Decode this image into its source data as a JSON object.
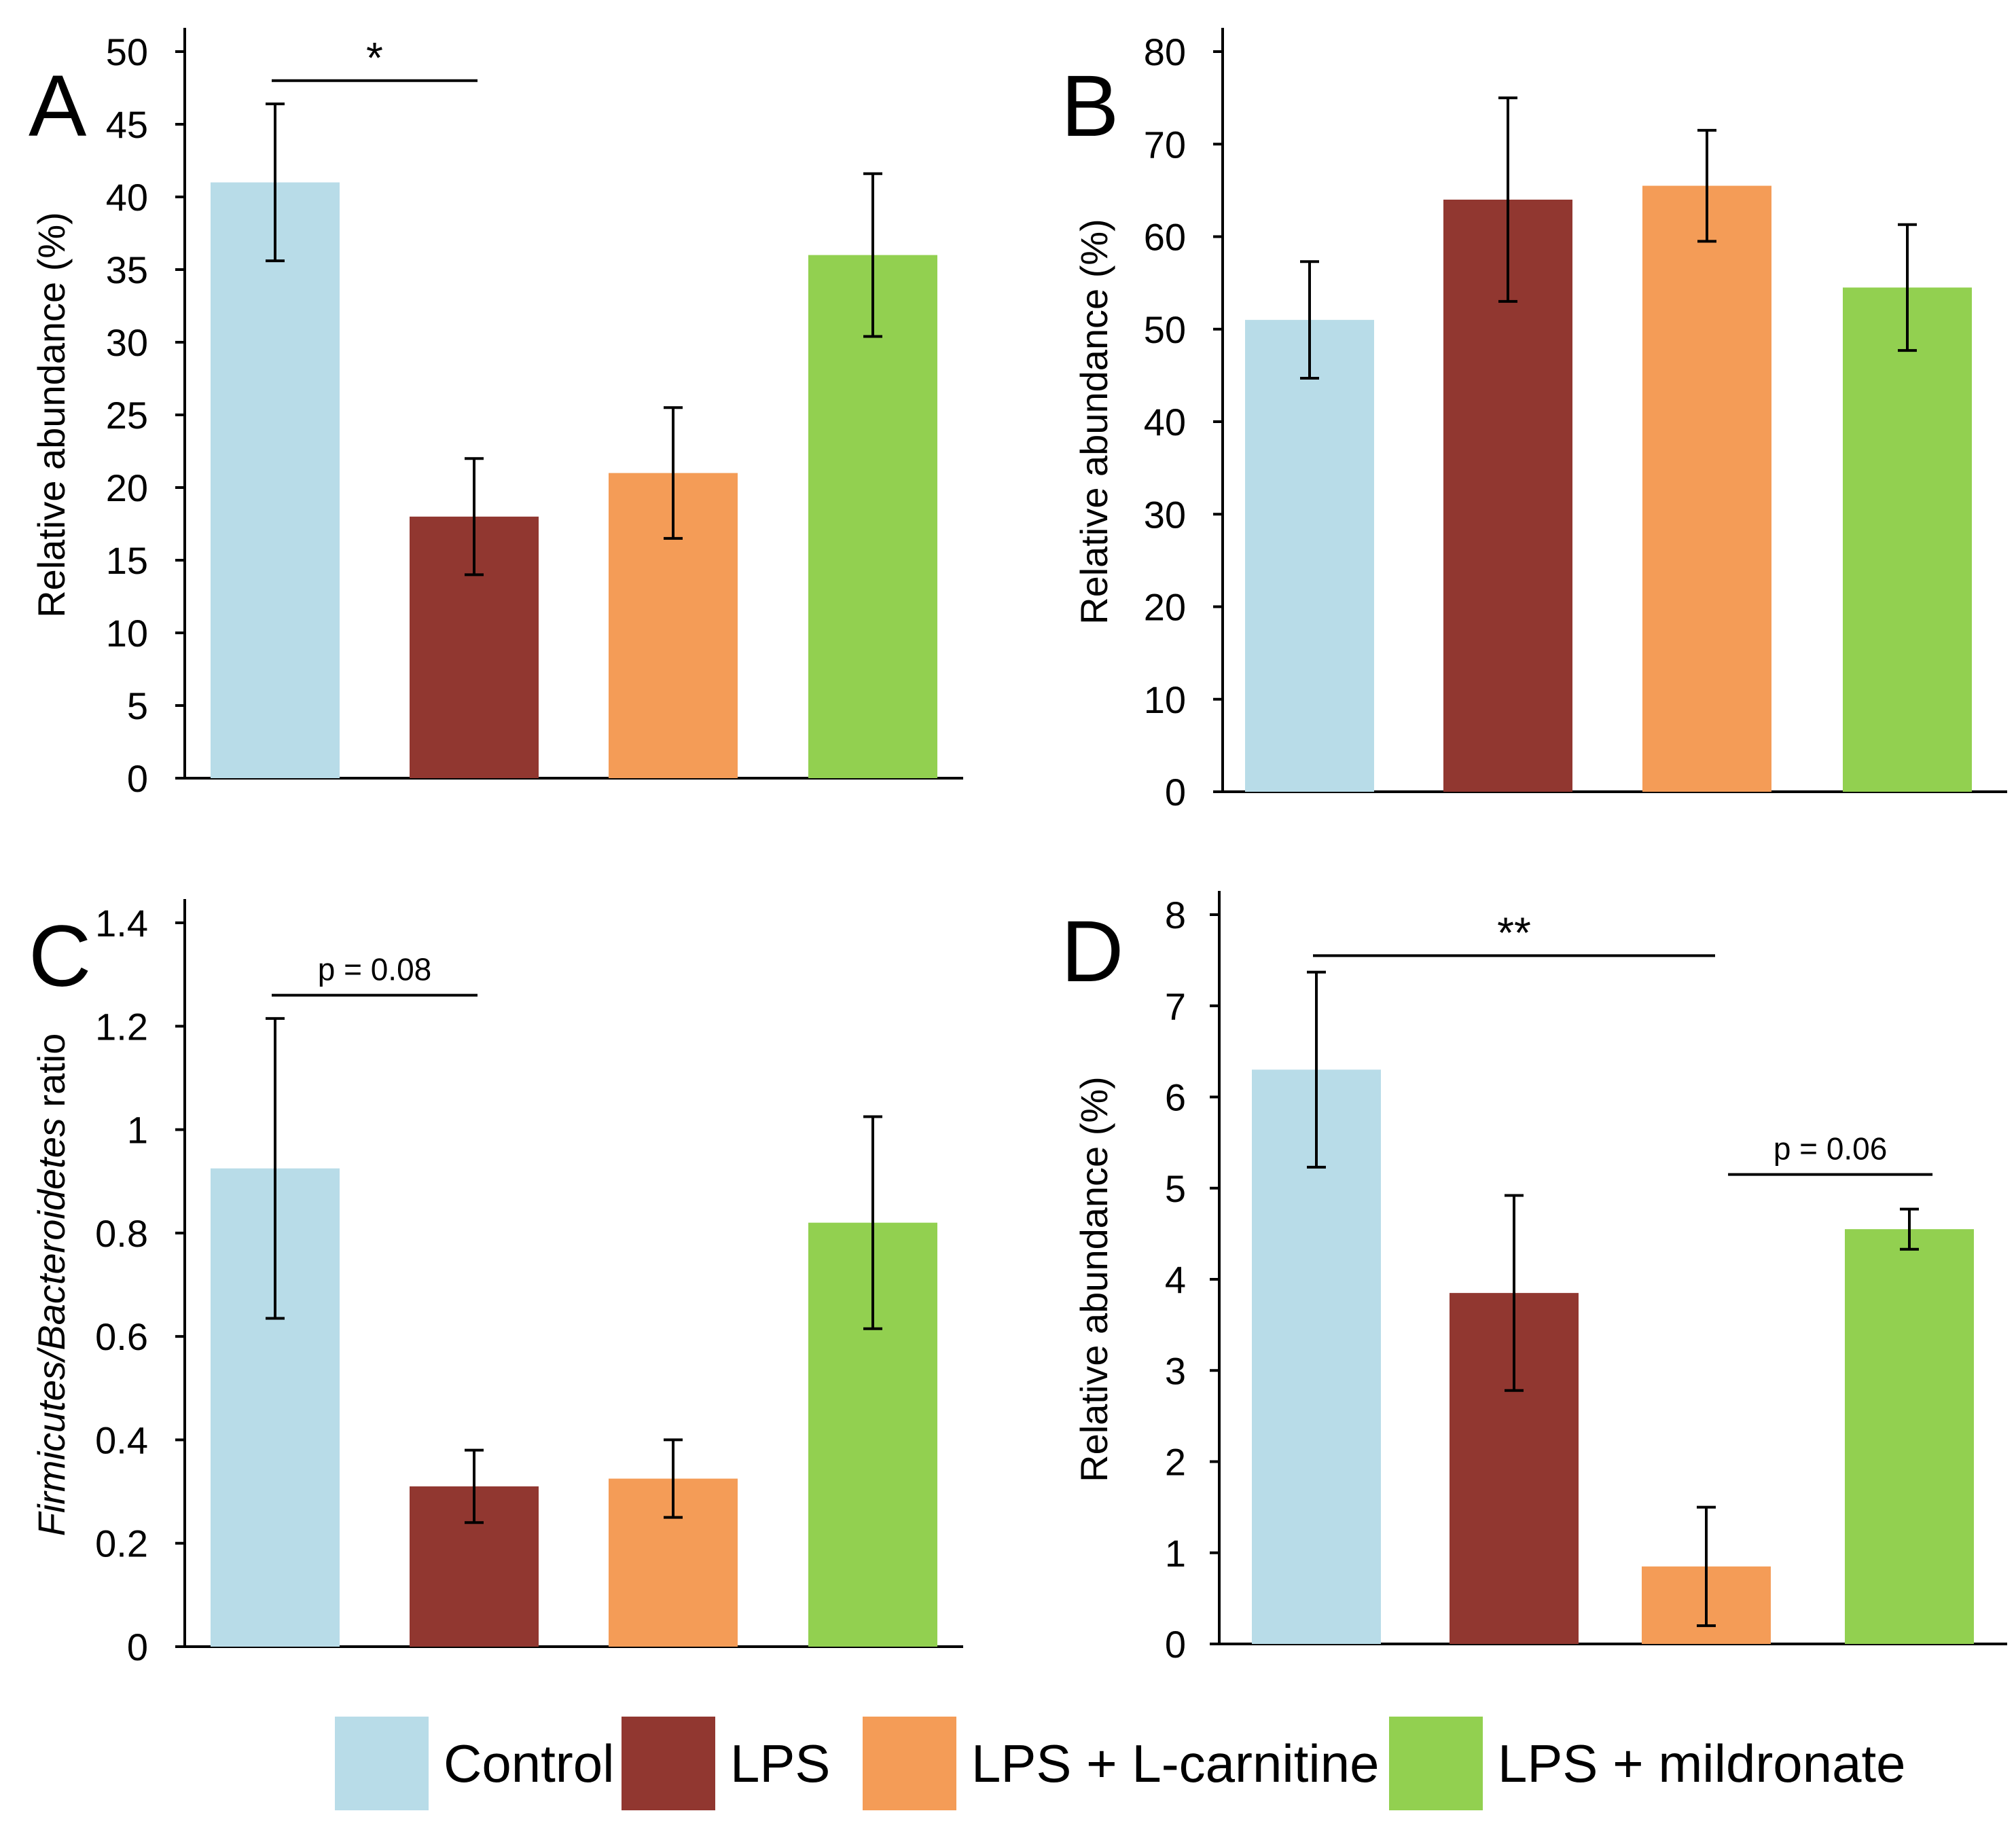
{
  "figure": {
    "legend": [
      {
        "label": "Control",
        "color": "#b8dce8"
      },
      {
        "label": "LPS",
        "color": "#913730"
      },
      {
        "label": "LPS + L-carnitine",
        "color": "#f49c57"
      },
      {
        "label": "LPS + mildronate",
        "color": "#92d050"
      }
    ]
  },
  "chart_data": [
    {
      "panel": "A",
      "type": "bar",
      "categories": [
        "Control",
        "LPS",
        "LPS + L-carnitine",
        "LPS + mildronate"
      ],
      "values": [
        41,
        18,
        21,
        36
      ],
      "errors": [
        5.4,
        4,
        4.5,
        5.6
      ],
      "ylabel": "Relative abundance (%)",
      "ylabel_italic_part": "",
      "ylim": [
        0,
        50
      ],
      "yticks": [
        0,
        5,
        10,
        15,
        20,
        25,
        30,
        35,
        40,
        45,
        50
      ],
      "ytick_labels": [
        "0",
        "5",
        "10",
        "15",
        "20",
        "25",
        "30",
        "35",
        "40",
        "45",
        "50"
      ],
      "annotations": [
        {
          "text": "*",
          "from": 0,
          "to": 1,
          "y": 48
        }
      ]
    },
    {
      "panel": "B",
      "type": "bar",
      "categories": [
        "Control",
        "LPS",
        "LPS + L-carnitine",
        "LPS + mildronate"
      ],
      "values": [
        51,
        64,
        65.5,
        54.5
      ],
      "errors": [
        6.3,
        11,
        6,
        6.8
      ],
      "ylabel": "Relative abundance (%)",
      "ylabel_italic_part": "",
      "ylim": [
        0,
        80
      ],
      "yticks": [
        0,
        10,
        20,
        30,
        40,
        50,
        60,
        70,
        80
      ],
      "ytick_labels": [
        "0",
        "10",
        "20",
        "30",
        "40",
        "50",
        "60",
        "70",
        "80"
      ],
      "annotations": []
    },
    {
      "panel": "C",
      "type": "bar",
      "categories": [
        "Control",
        "LPS",
        "LPS + L-carnitine",
        "LPS + mildronate"
      ],
      "values": [
        0.925,
        0.31,
        0.325,
        0.82
      ],
      "errors": [
        0.29,
        0.07,
        0.075,
        0.205
      ],
      "ylabel": "ratio",
      "ylabel_italic_part": "Firmicutes/Bacteroidetes",
      "ylim": [
        0,
        1.4
      ],
      "yticks": [
        0,
        0.2,
        0.4,
        0.6,
        0.8,
        1.0,
        1.2,
        1.4
      ],
      "ytick_labels": [
        "0",
        "0.2",
        "0.4",
        "0.6",
        "0.8",
        "1",
        "1.2",
        "1.4"
      ],
      "annotations": [
        {
          "text": "p = 0.08",
          "from": 0,
          "to": 1,
          "y": 1.26
        }
      ]
    },
    {
      "panel": "D",
      "type": "bar",
      "categories": [
        "Control",
        "LPS",
        "LPS + L-carnitine",
        "LPS + mildronate"
      ],
      "values": [
        6.3,
        3.85,
        0.85,
        4.55
      ],
      "errors": [
        1.07,
        1.07,
        0.65,
        0.22
      ],
      "ylabel": "Relative abundance (%)",
      "ylabel_italic_part": "",
      "ylim": [
        0,
        8
      ],
      "yticks": [
        0,
        1,
        2,
        3,
        4,
        5,
        6,
        7,
        8
      ],
      "ytick_labels": [
        "0",
        "1",
        "2",
        "3",
        "4",
        "5",
        "6",
        "7",
        "8"
      ],
      "annotations": [
        {
          "text": "**",
          "from": 0,
          "to": 2,
          "y": 7.55
        },
        {
          "text": "p = 0.06",
          "from": 2.1,
          "to": 3.1,
          "y": 5.15
        }
      ]
    }
  ]
}
